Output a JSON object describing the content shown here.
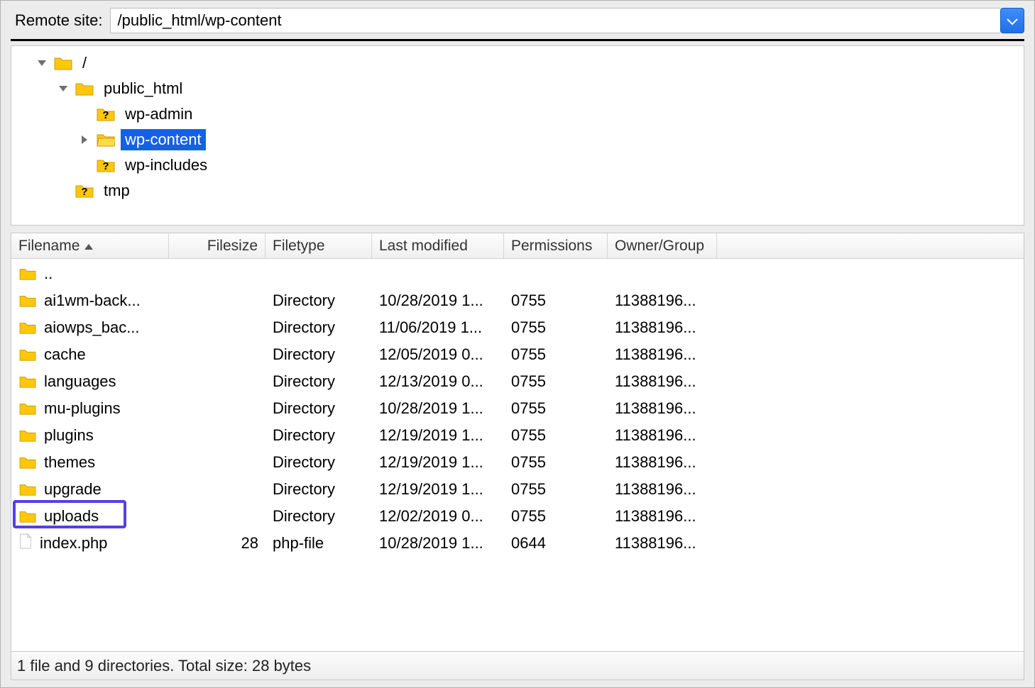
{
  "addressBar": {
    "label": "Remote site:",
    "path": "/public_html/wp-content"
  },
  "tree": [
    {
      "indent": 0,
      "disclosure": "down",
      "icon": "folder",
      "label": "/",
      "selected": false
    },
    {
      "indent": 1,
      "disclosure": "down",
      "icon": "folder",
      "label": "public_html",
      "selected": false
    },
    {
      "indent": 2,
      "disclosure": "none",
      "icon": "folder-q",
      "label": "wp-admin",
      "selected": false
    },
    {
      "indent": 2,
      "disclosure": "right",
      "icon": "folder-o",
      "label": "wp-content",
      "selected": true
    },
    {
      "indent": 2,
      "disclosure": "none",
      "icon": "folder-q",
      "label": "wp-includes",
      "selected": false
    },
    {
      "indent": 1,
      "disclosure": "none",
      "icon": "folder-q",
      "label": "tmp",
      "selected": false
    }
  ],
  "columns": {
    "name": "Filename",
    "size": "Filesize",
    "type": "Filetype",
    "modified": "Last modified",
    "permissions": "Permissions",
    "owner": "Owner/Group"
  },
  "files": [
    {
      "icon": "folder",
      "name": "..",
      "size": "",
      "type": "",
      "modified": "",
      "permissions": "",
      "owner": "",
      "highlight": false
    },
    {
      "icon": "folder",
      "name": "ai1wm-back...",
      "size": "",
      "type": "Directory",
      "modified": "10/28/2019 1...",
      "permissions": "0755",
      "owner": "11388196...",
      "highlight": false
    },
    {
      "icon": "folder",
      "name": "aiowps_bac...",
      "size": "",
      "type": "Directory",
      "modified": "11/06/2019 1...",
      "permissions": "0755",
      "owner": "11388196...",
      "highlight": false
    },
    {
      "icon": "folder",
      "name": "cache",
      "size": "",
      "type": "Directory",
      "modified": "12/05/2019 0...",
      "permissions": "0755",
      "owner": "11388196...",
      "highlight": false
    },
    {
      "icon": "folder",
      "name": "languages",
      "size": "",
      "type": "Directory",
      "modified": "12/13/2019 0...",
      "permissions": "0755",
      "owner": "11388196...",
      "highlight": false
    },
    {
      "icon": "folder",
      "name": "mu-plugins",
      "size": "",
      "type": "Directory",
      "modified": "10/28/2019 1...",
      "permissions": "0755",
      "owner": "11388196...",
      "highlight": false
    },
    {
      "icon": "folder",
      "name": "plugins",
      "size": "",
      "type": "Directory",
      "modified": "12/19/2019 1...",
      "permissions": "0755",
      "owner": "11388196...",
      "highlight": false
    },
    {
      "icon": "folder",
      "name": "themes",
      "size": "",
      "type": "Directory",
      "modified": "12/19/2019 1...",
      "permissions": "0755",
      "owner": "11388196...",
      "highlight": false
    },
    {
      "icon": "folder",
      "name": "upgrade",
      "size": "",
      "type": "Directory",
      "modified": "12/19/2019 1...",
      "permissions": "0755",
      "owner": "11388196...",
      "highlight": false
    },
    {
      "icon": "folder",
      "name": "uploads",
      "size": "",
      "type": "Directory",
      "modified": "12/02/2019 0...",
      "permissions": "0755",
      "owner": "11388196...",
      "highlight": true
    },
    {
      "icon": "file",
      "name": "index.php",
      "size": "28",
      "type": "php-file",
      "modified": "10/28/2019 1...",
      "permissions": "0644",
      "owner": "11388196...",
      "highlight": false
    }
  ],
  "status": "1 file and 9 directories. Total size: 28 bytes",
  "colors": {
    "selection": "#1461e4",
    "highlightBorder": "#5540e0",
    "folderFill": "#ffc80a",
    "folderStroke": "#d19a00"
  }
}
